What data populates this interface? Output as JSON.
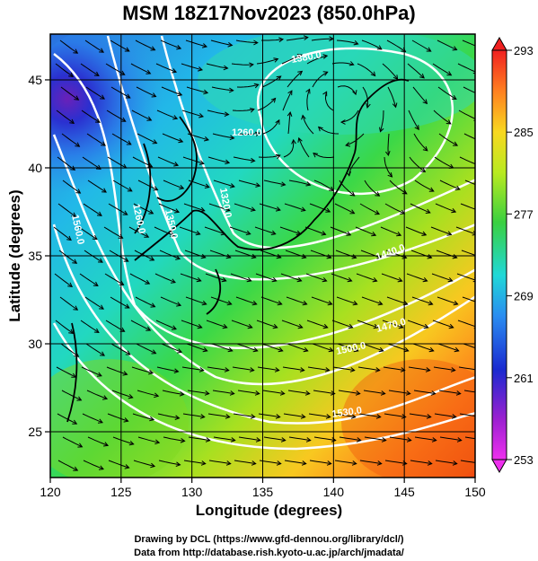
{
  "title": "MSM 18Z17Nov2023 (850.0hPa)",
  "xaxis": {
    "label": "Longitude (degrees)",
    "min": 120,
    "max": 150,
    "ticks": [
      "120",
      "125",
      "130",
      "135",
      "140",
      "145",
      "150"
    ]
  },
  "yaxis": {
    "label": "Latitude  (degrees)",
    "min": 22.4,
    "max": 47.6,
    "ticks": [
      "25",
      "30",
      "35",
      "40",
      "45"
    ]
  },
  "colorbar": {
    "min": 253,
    "max": 293,
    "labels": [
      "293",
      "285",
      "277",
      "269",
      "261",
      "253"
    ]
  },
  "contour_labels": [
    "1260.0",
    "1350.0",
    "1260.0",
    "1380.0",
    "1440.0",
    "1470.0",
    "1500.0",
    "1530.0",
    "1560.0",
    "1320.0"
  ],
  "credits": {
    "line1": "Drawing by DCL (https://www.gfd-dennou.org/library/dcl/)",
    "line2": "Data from http://database.rish.kyoto-u.ac.jp/arch/jmadata/"
  },
  "chart_data": {
    "type": "heatmap",
    "title": "MSM 18Z17Nov2023 (850.0hPa)",
    "xlabel": "Longitude (degrees)",
    "ylabel": "Latitude  (degrees)",
    "xlim": [
      120,
      150
    ],
    "ylim": [
      22.4,
      47.6
    ],
    "x_ticks": [
      120,
      125,
      130,
      135,
      140,
      145,
      150
    ],
    "y_ticks": [
      25,
      30,
      35,
      40,
      45
    ],
    "colorbar_range": [
      253,
      293
    ],
    "colorbar_ticks": [
      293,
      285,
      277,
      269,
      261,
      253
    ],
    "overlays": [
      "temperature shading",
      "geopotential height contours (white)",
      "wind streamlines (black)",
      "coastlines",
      "lat/lon grid every 5 degrees"
    ],
    "grid": true,
    "legend": "right colorbar"
  },
  "colors": {
    "cold": "#2030c0",
    "mid": "#40e040",
    "warm": "#ff6a1a",
    "contour": "#ffffff"
  }
}
